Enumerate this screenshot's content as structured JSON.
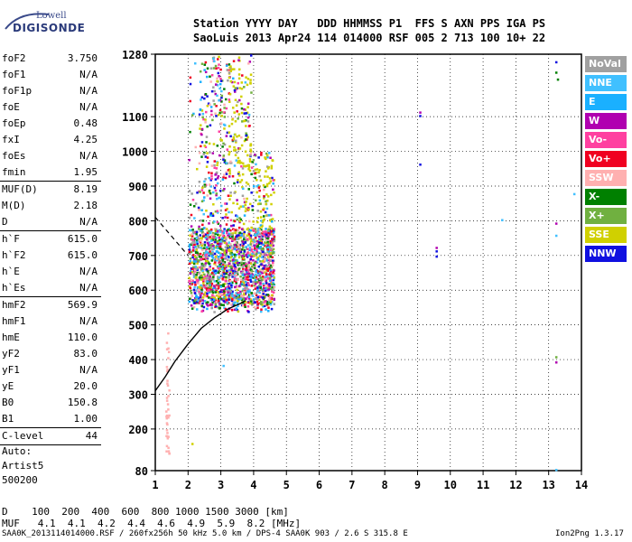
{
  "logo": {
    "top": "Lowell",
    "main": "DIGISONDE"
  },
  "header": {
    "line1": "Station YYYY DAY   DDD HHMMSS P1  FFS S AXN PPS IGA PS",
    "line2": "SaoLuis 2013 Apr24 114 014000 RSF 005 2 713 100 10+ 22"
  },
  "params": {
    "group1": [
      {
        "k": "foF2",
        "v": "3.750"
      },
      {
        "k": "foF1",
        "v": "N/A"
      },
      {
        "k": "foF1p",
        "v": "N/A"
      },
      {
        "k": "foE",
        "v": "N/A"
      },
      {
        "k": "foEp",
        "v": "0.48"
      },
      {
        "k": "fxI",
        "v": "4.25"
      },
      {
        "k": "foEs",
        "v": "N/A"
      },
      {
        "k": "fmin",
        "v": "1.95"
      }
    ],
    "group2": [
      {
        "k": "MUF(D)",
        "v": "8.19"
      },
      {
        "k": "M(D)",
        "v": "2.18"
      },
      {
        "k": "D",
        "v": "N/A"
      }
    ],
    "group3": [
      {
        "k": "h`F",
        "v": "615.0"
      },
      {
        "k": "h`F2",
        "v": "615.0"
      },
      {
        "k": "h`E",
        "v": "N/A"
      },
      {
        "k": "h`Es",
        "v": "N/A"
      }
    ],
    "group4": [
      {
        "k": "hmF2",
        "v": "569.9"
      },
      {
        "k": "hmF1",
        "v": "N/A"
      },
      {
        "k": "hmE",
        "v": "110.0"
      },
      {
        "k": "yF2",
        "v": "83.0"
      },
      {
        "k": "yF1",
        "v": "N/A"
      },
      {
        "k": "yE",
        "v": "20.0"
      },
      {
        "k": "B0",
        "v": "150.8"
      },
      {
        "k": "B1",
        "v": "1.00"
      }
    ],
    "group5": [
      {
        "k": "C-level",
        "v": "44"
      }
    ],
    "auto": [
      "Auto:",
      "Artist5",
      "500200"
    ]
  },
  "legend": [
    {
      "label": "NoVal",
      "color": "#a0a0a0"
    },
    {
      "label": "NNE",
      "color": "#40c0ff"
    },
    {
      "label": "E",
      "color": "#1ab0ff"
    },
    {
      "label": "W",
      "color": "#b000b0"
    },
    {
      "label": "Vo-",
      "color": "#ff40a0"
    },
    {
      "label": "Vo+",
      "color": "#f00020"
    },
    {
      "label": "SSW",
      "color": "#ffb0b0"
    },
    {
      "label": "X-",
      "color": "#008000"
    },
    {
      "label": "X+",
      "color": "#70b040"
    },
    {
      "label": "SSE",
      "color": "#d0d000"
    },
    {
      "label": "NNW",
      "color": "#1010e0"
    }
  ],
  "bottom": {
    "row1": "D    100  200  400  600  800 1000 1500 3000 [km]",
    "row2": "MUF   4.1  4.1  4.2  4.4  4.6  4.9  5.9  8.2 [MHz]"
  },
  "footer": {
    "left": "SAA0K_2013114014000.RSF / 260fx256h 50 kHz 5.0 km / DPS-4 SAA0K 903 / 2.6 S 315.8 E",
    "right": "Ion2Png 1.3.17"
  },
  "chart_data": {
    "type": "scatter",
    "xlabel": "",
    "ylabel": "",
    "xlim": [
      1,
      14
    ],
    "ylim": [
      80,
      1280
    ],
    "x_ticks": [
      1,
      2,
      3,
      4,
      5,
      6,
      7,
      8,
      9,
      10,
      11,
      12,
      13,
      14
    ],
    "y_ticks": [
      80,
      200,
      300,
      400,
      500,
      600,
      700,
      800,
      900,
      1000,
      1100,
      1280
    ],
    "grid": true,
    "trace_profile": {
      "name": "",
      "x": [
        1.0,
        1.3,
        1.6,
        2.0,
        2.4,
        2.8,
        3.2,
        3.6,
        3.75
      ],
      "y": [
        310,
        350,
        395,
        445,
        490,
        520,
        545,
        562,
        570
      ]
    },
    "dashed_extrapolation": {
      "x": [
        1.0,
        2.0
      ],
      "y": [
        810,
        700
      ]
    },
    "echo_cluster": {
      "x_range": [
        2.0,
        4.6
      ],
      "y_range": [
        540,
        1280
      ],
      "dense_y_range": [
        560,
        780
      ]
    }
  }
}
